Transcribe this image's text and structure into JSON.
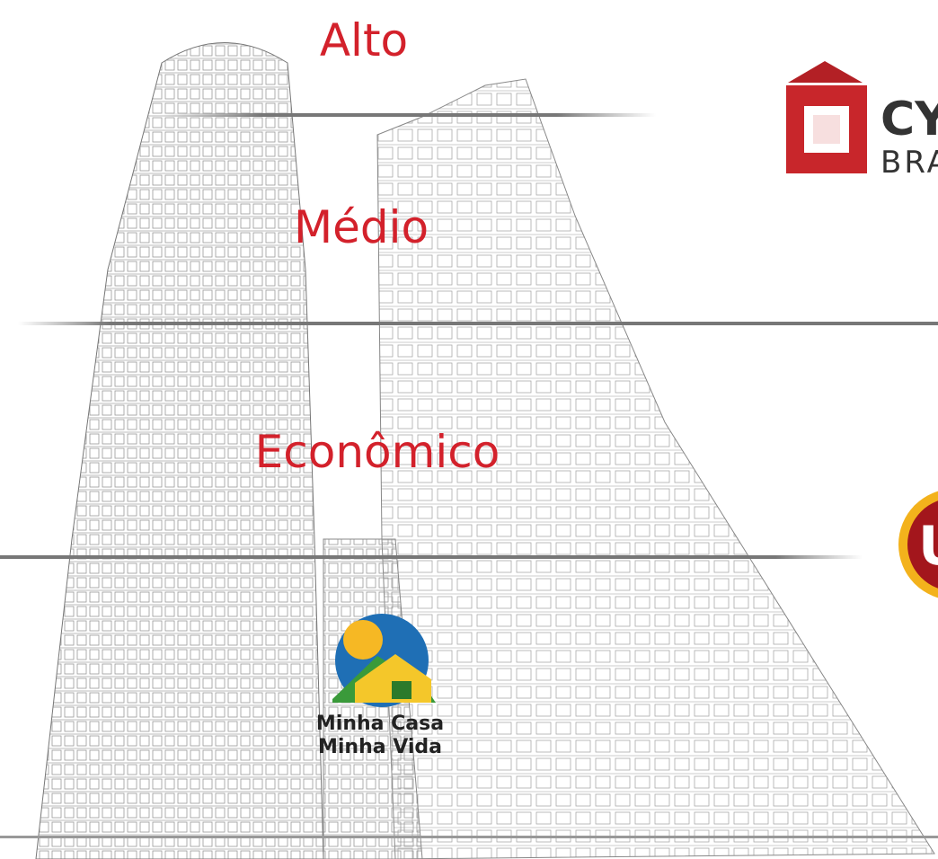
{
  "labels": [
    "Alto",
    "Médio",
    "Econômico"
  ],
  "mcmv_logo": {
    "line1": "Minha Casa",
    "line2": "Minha Vida"
  },
  "cyrela_logo": {
    "line1": "CY",
    "line2": "BRA"
  },
  "badge_logo": {
    "letter": "U"
  }
}
